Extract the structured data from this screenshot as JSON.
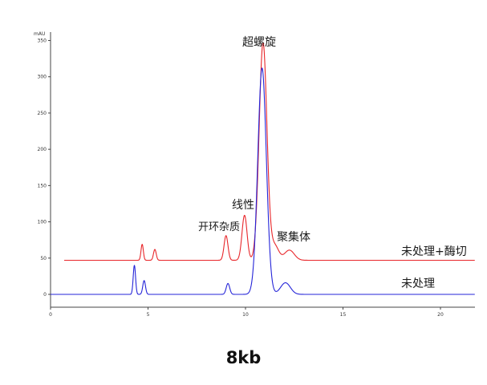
{
  "chart_data": {
    "type": "line",
    "ylabel": "mAU",
    "xlim": [
      0,
      22
    ],
    "ylim": [
      -15,
      355
    ],
    "x_ticks": [
      0,
      5,
      10,
      15,
      20
    ],
    "y_ticks": [
      0,
      50,
      100,
      150,
      200,
      250,
      300,
      350
    ],
    "grid": false,
    "series": [
      {
        "name": "未处理+酶切",
        "color": "#e8262a",
        "baseline": 47,
        "x_start": 0.7,
        "peaks": [
          {
            "x": 4.7,
            "height": 22,
            "width": 0.06
          },
          {
            "x": 5.35,
            "height": 15,
            "width": 0.07
          },
          {
            "x": 9.0,
            "height": 34,
            "width": 0.1
          },
          {
            "x": 9.95,
            "height": 62,
            "width": 0.13
          },
          {
            "x": 10.9,
            "height": 300,
            "width": 0.2
          },
          {
            "x": 11.5,
            "height": 20,
            "width": 0.2
          },
          {
            "x": 12.25,
            "height": 14,
            "width": 0.25
          }
        ]
      },
      {
        "name": "未处理",
        "color": "#2424d8",
        "baseline": 0,
        "x_start": 0,
        "peaks": [
          {
            "x": 4.3,
            "height": 40,
            "width": 0.06
          },
          {
            "x": 4.8,
            "height": 19,
            "width": 0.07
          },
          {
            "x": 9.1,
            "height": 15,
            "width": 0.09
          },
          {
            "x": 10.85,
            "height": 312,
            "width": 0.22
          },
          {
            "x": 12.05,
            "height": 16,
            "width": 0.25
          }
        ]
      }
    ],
    "annotations": {
      "supercoiled": "超螺旋",
      "linear": "线性",
      "open_circle": "开环杂质",
      "aggregate": "聚集体",
      "trace_digested": "未处理+酶切",
      "trace_untreated": "未处理"
    }
  },
  "caption": "8kb"
}
